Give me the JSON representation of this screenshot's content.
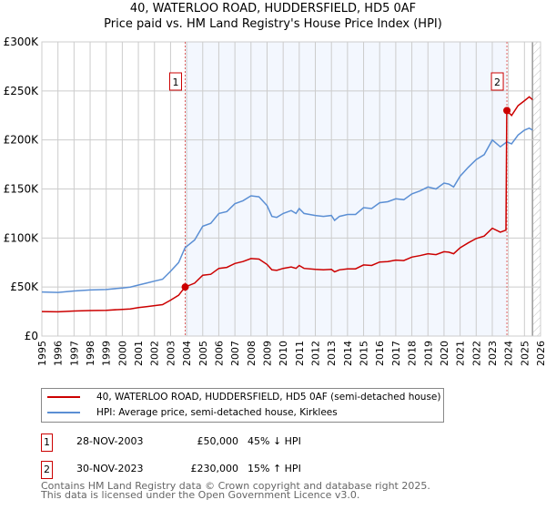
{
  "title": "40, WATERLOO ROAD, HUDDERSFIELD, HD5 0AF",
  "subtitle": "Price paid vs. HM Land Registry's House Price Index (HPI)",
  "chart_data": {
    "type": "line",
    "xlim": [
      1995,
      2026
    ],
    "ylim": [
      0,
      300000
    ],
    "x_ticks": [
      "1995",
      "1996",
      "1997",
      "1998",
      "1999",
      "2000",
      "2001",
      "2002",
      "2003",
      "2004",
      "2005",
      "2006",
      "2007",
      "2008",
      "2009",
      "2010",
      "2011",
      "2012",
      "2013",
      "2014",
      "2015",
      "2016",
      "2017",
      "2018",
      "2019",
      "2020",
      "2021",
      "2022",
      "2023",
      "2024",
      "2025",
      "2026"
    ],
    "y_ticks": [
      {
        "v": 0,
        "label": "£0"
      },
      {
        "v": 50000,
        "label": "£50K"
      },
      {
        "v": 100000,
        "label": "£100K"
      },
      {
        "v": 150000,
        "label": "£150K"
      },
      {
        "v": 200000,
        "label": "£200K"
      },
      {
        "v": 250000,
        "label": "£250K"
      },
      {
        "v": 300000,
        "label": "£300K"
      }
    ],
    "grid": true,
    "series": [
      {
        "name": "HPI: Average price, semi-detached house, Kirklees",
        "color": "#5b8fd4",
        "x": [
          1995,
          1996,
          1997,
          1998,
          1999,
          2000,
          2000.5,
          2001,
          2001.5,
          2002,
          2002.5,
          2003,
          2003.5,
          2003.9,
          2004.5,
          2005,
          2005.5,
          2006,
          2006.5,
          2007,
          2007.5,
          2008,
          2008.5,
          2009,
          2009.3,
          2009.6,
          2010,
          2010.5,
          2010.8,
          2011,
          2011.3,
          2012,
          2012.5,
          2013,
          2013.2,
          2013.5,
          2014,
          2014.5,
          2015,
          2015.5,
          2016,
          2016.5,
          2017,
          2017.5,
          2018,
          2018.5,
          2019,
          2019.5,
          2020,
          2020.3,
          2020.6,
          2021,
          2021.5,
          2022,
          2022.5,
          2023,
          2023.5,
          2023.9,
          2024.2,
          2024.6,
          2025,
          2025.3,
          2025.5
        ],
        "y": [
          45000,
          44500,
          46000,
          47000,
          47500,
          49000,
          50000,
          52000,
          54000,
          56000,
          58000,
          66000,
          75000,
          90000,
          98000,
          112000,
          115000,
          125000,
          127000,
          135000,
          138000,
          143000,
          142000,
          133000,
          122000,
          121000,
          125000,
          128000,
          125000,
          130000,
          125000,
          123000,
          122000,
          123000,
          118000,
          122000,
          124000,
          124000,
          131000,
          130000,
          136000,
          137000,
          140000,
          139000,
          145000,
          148000,
          152000,
          150000,
          156000,
          155000,
          152000,
          163000,
          172000,
          180000,
          185000,
          200000,
          193000,
          198000,
          196000,
          205000,
          210000,
          212000,
          210000
        ]
      },
      {
        "name": "40, WATERLOO ROAD, HUDDERSFIELD, HD5 0AF (semi-detached house)",
        "color": "#cc0000",
        "x": [
          1995,
          1996,
          1997,
          1998,
          1999,
          2000,
          2000.5,
          2001,
          2001.5,
          2002,
          2002.5,
          2003,
          2003.5,
          2003.9,
          2004.5,
          2005,
          2005.5,
          2006,
          2006.5,
          2007,
          2007.5,
          2008,
          2008.5,
          2009,
          2009.3,
          2009.6,
          2010,
          2010.5,
          2010.8,
          2011,
          2011.3,
          2012,
          2012.5,
          2013,
          2013.2,
          2013.5,
          2014,
          2014.5,
          2015,
          2015.5,
          2016,
          2016.5,
          2017,
          2017.5,
          2018,
          2018.5,
          2019,
          2019.5,
          2020,
          2020.3,
          2020.6,
          2021,
          2021.5,
          2022,
          2022.5,
          2023,
          2023.5,
          2023.85,
          2023.9,
          2024.2,
          2024.6,
          2025,
          2025.3,
          2025.5
        ],
        "y": [
          25000,
          24700,
          25500,
          26000,
          26300,
          27200,
          27700,
          29000,
          30000,
          31000,
          32000,
          36600,
          41600,
          50000,
          54000,
          62000,
          63000,
          69000,
          70000,
          74000,
          76000,
          79000,
          78500,
          73000,
          67500,
          67000,
          69000,
          70500,
          69000,
          72000,
          69000,
          68000,
          67500,
          68000,
          65500,
          67500,
          68500,
          68500,
          72500,
          72000,
          75500,
          76000,
          77500,
          77000,
          80500,
          82000,
          84000,
          83000,
          86000,
          85500,
          84000,
          90000,
          95000,
          99500,
          102000,
          110000,
          106000,
          108000,
          230000,
          225000,
          235000,
          240000,
          244000,
          241000
        ]
      }
    ],
    "annotations": [
      {
        "label": "1",
        "x": 2003.91,
        "y": 50000
      },
      {
        "label": "2",
        "x": 2023.91,
        "y": 230000
      }
    ]
  },
  "legend": [
    {
      "label": "40, WATERLOO ROAD, HUDDERSFIELD, HD5 0AF (semi-detached house)",
      "color": "#cc0000"
    },
    {
      "label": "HPI: Average price, semi-detached house, Kirklees",
      "color": "#5b8fd4"
    }
  ],
  "transactions": [
    {
      "num": "1",
      "date": "28-NOV-2003",
      "price": "£50,000",
      "hpi": "45% ↓ HPI"
    },
    {
      "num": "2",
      "date": "30-NOV-2023",
      "price": "£230,000",
      "hpi": "15% ↑ HPI"
    }
  ],
  "footer": [
    "Contains HM Land Registry data © Crown copyright and database right 2025.",
    "This data is licensed under the Open Government Licence v3.0."
  ]
}
